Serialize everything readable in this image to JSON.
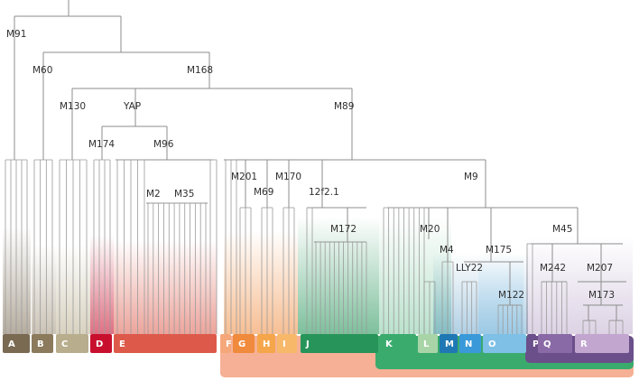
{
  "tree": {
    "root_label": "M91",
    "internal_nodes": [
      {
        "id": "M91",
        "label": "M91"
      },
      {
        "id": "M60",
        "label": "M60"
      },
      {
        "id": "M168",
        "label": "M168"
      },
      {
        "id": "M130",
        "label": "M130"
      },
      {
        "id": "YAP",
        "label": "YAP"
      },
      {
        "id": "M89",
        "label": "M89"
      },
      {
        "id": "M174",
        "label": "M174"
      },
      {
        "id": "M96",
        "label": "M96"
      },
      {
        "id": "M2",
        "label": "M2"
      },
      {
        "id": "M35",
        "label": "M35"
      },
      {
        "id": "M201",
        "label": "M201"
      },
      {
        "id": "M69",
        "label": "M69"
      },
      {
        "id": "M170",
        "label": "M170"
      },
      {
        "id": "12f2.1",
        "label": "12f2.1"
      },
      {
        "id": "M172",
        "label": "M172"
      },
      {
        "id": "M9",
        "label": "M9"
      },
      {
        "id": "M20",
        "label": "M20"
      },
      {
        "id": "M4",
        "label": "M4"
      },
      {
        "id": "M175",
        "label": "M175"
      },
      {
        "id": "LLY22",
        "label": "LLY22"
      },
      {
        "id": "M122",
        "label": "M122"
      },
      {
        "id": "M45",
        "label": "M45"
      },
      {
        "id": "M242",
        "label": "M242"
      },
      {
        "id": "M207",
        "label": "M207"
      },
      {
        "id": "M173",
        "label": "M173"
      }
    ],
    "haplogroups": [
      {
        "letter": "A",
        "color": "#7a6a52"
      },
      {
        "letter": "B",
        "color": "#8b7a5c"
      },
      {
        "letter": "C",
        "color": "#b8ad8c"
      },
      {
        "letter": "D",
        "color": "#c8102e"
      },
      {
        "letter": "E",
        "color": "#dd5a4a"
      },
      {
        "letter": "F",
        "color": "#f5a77a"
      },
      {
        "letter": "G",
        "color": "#f08a3c"
      },
      {
        "letter": "H",
        "color": "#f5a64a"
      },
      {
        "letter": "I",
        "color": "#f7b86a"
      },
      {
        "letter": "J",
        "color": "#27955a"
      },
      {
        "letter": "K",
        "color": "#3aab6d"
      },
      {
        "letter": "L",
        "color": "#a8d4a8"
      },
      {
        "letter": "M",
        "color": "#1f78b4"
      },
      {
        "letter": "N",
        "color": "#3a9ad9"
      },
      {
        "letter": "O",
        "color": "#7ec0e6"
      },
      {
        "letter": "P",
        "color": "#6b4f8a"
      },
      {
        "letter": "Q",
        "color": "#8a6aa6"
      },
      {
        "letter": "R",
        "color": "#c3a6d0"
      }
    ]
  },
  "colors": {
    "line": "#8c8c8c",
    "F_bracket": "#f5a78a",
    "K_bracket": "#3aab6d",
    "P_bracket": "#6b4f8a"
  }
}
